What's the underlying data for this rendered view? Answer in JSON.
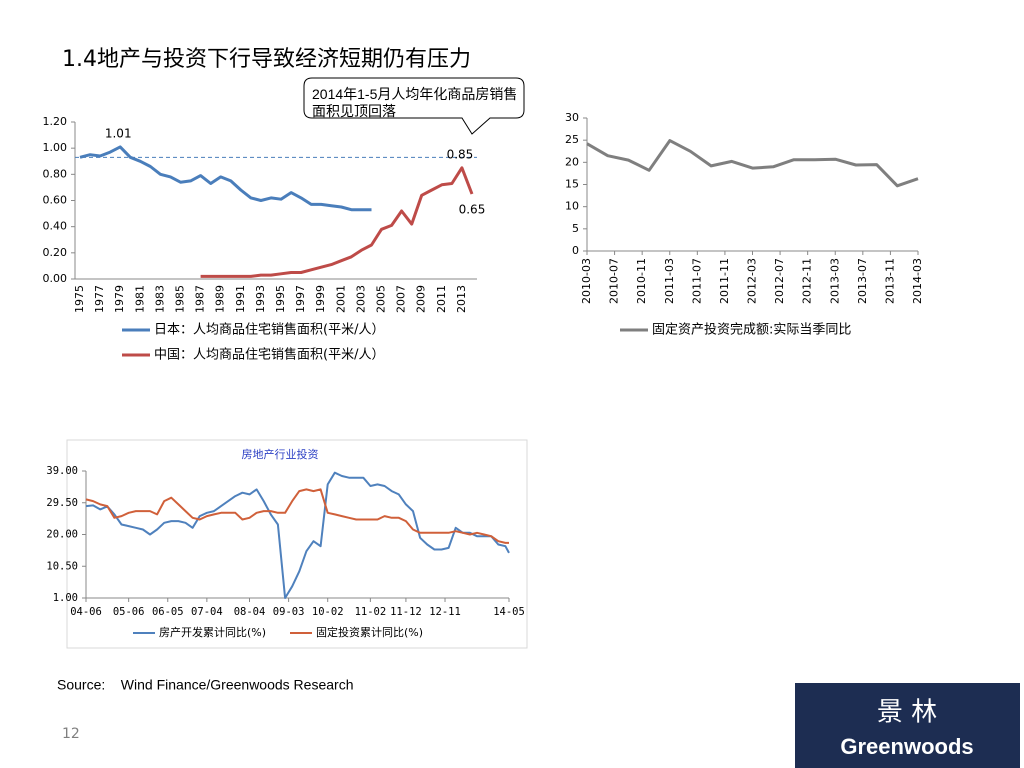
{
  "slide": {
    "title": "1.4地产与投资下行导致经济短期仍有压力",
    "source": "Source:    Wind Finance/Greenwoods Research",
    "page": "12",
    "logo_cn": "景 林",
    "logo_en": "Greenwoods"
  },
  "chart_data": [
    {
      "type": "line",
      "annotation": "2014年1-5月人均年化商品房销售面积见顶回落",
      "categories": [
        "1975",
        null,
        "1977",
        null,
        "1979",
        null,
        "1981",
        null,
        "1983",
        null,
        "1985",
        null,
        "1987",
        null,
        "1989",
        null,
        "1991",
        null,
        "1993",
        null,
        "1995",
        null,
        "1997",
        null,
        "1999",
        null,
        "2001",
        null,
        "2003",
        null,
        "2005",
        null,
        "2007",
        null,
        "2009",
        null,
        "2011",
        null,
        "2013",
        null
      ],
      "ylim": [
        0,
        1.2
      ],
      "yticks": [
        {
          "value": 0,
          "label": "0.00"
        },
        {
          "value": 0.2,
          "label": "0.20"
        },
        {
          "value": 0.4,
          "label": "0.40"
        },
        {
          "value": 0.6,
          "label": "0.60"
        },
        {
          "value": 0.8,
          "label": "0.80"
        },
        {
          "value": 1.0,
          "label": "1.00"
        },
        {
          "value": 1.2,
          "label": "1.20"
        }
      ],
      "reference_line": 0.93,
      "grid": false,
      "series": [
        {
          "name": "日本：人均商品住宅销售面积(平米/人）",
          "color": "#4a7ebb",
          "values": [
            0.93,
            0.95,
            0.94,
            0.97,
            1.01,
            0.93,
            0.9,
            0.86,
            0.8,
            0.78,
            0.74,
            0.75,
            0.79,
            0.73,
            0.78,
            0.75,
            0.68,
            0.62,
            0.6,
            0.62,
            0.61,
            0.66,
            0.62,
            0.57,
            0.57,
            0.56,
            0.55,
            0.53,
            0.53,
            0.53,
            null,
            null,
            null,
            null,
            null,
            null,
            null,
            null,
            null,
            null
          ],
          "value_labels": [
            null,
            null,
            null,
            null,
            "1.01",
            null,
            null,
            null,
            null,
            null,
            null,
            null,
            null,
            null,
            null,
            null,
            null,
            null,
            null,
            null,
            null,
            null,
            null,
            null,
            null,
            null,
            null,
            null,
            null,
            null,
            null,
            null,
            null,
            null,
            null,
            null,
            null,
            null,
            null,
            null
          ]
        },
        {
          "name": "中国：人均商品住宅销售面积(平米/人）",
          "color": "#be4b48",
          "values": [
            null,
            null,
            null,
            null,
            null,
            null,
            null,
            null,
            null,
            null,
            null,
            null,
            0.02,
            0.02,
            0.02,
            0.02,
            0.02,
            0.02,
            0.03,
            0.03,
            0.04,
            0.05,
            0.05,
            0.07,
            0.09,
            0.11,
            0.14,
            0.17,
            0.22,
            0.26,
            0.38,
            0.41,
            0.52,
            0.42,
            0.64,
            0.68,
            0.72,
            0.73,
            0.85,
            0.65
          ],
          "value_labels": [
            null,
            null,
            null,
            null,
            null,
            null,
            null,
            null,
            null,
            null,
            null,
            null,
            null,
            null,
            null,
            null,
            null,
            null,
            null,
            null,
            null,
            null,
            null,
            null,
            null,
            null,
            null,
            null,
            null,
            null,
            null,
            null,
            null,
            null,
            null,
            null,
            null,
            null,
            "0.85",
            "0.65"
          ]
        }
      ]
    },
    {
      "type": "line",
      "x": [
        "2010-03",
        "2010-06",
        "2010-09",
        "2010-12",
        "2011-03",
        "2011-06",
        "2011-09",
        "2011-12",
        "2012-03",
        "2012-06",
        "2012-09",
        "2012-12",
        "2013-03",
        "2013-06",
        "2013-09",
        "2013-12",
        "2014-03"
      ],
      "xlim": [
        "2010-03",
        "2014-03"
      ],
      "xticks": [
        "2010-03",
        "2010-07",
        "2010-11",
        "2011-03",
        "2011-07",
        "2011-11",
        "2012-03",
        "2012-07",
        "2012-11",
        "2013-03",
        "2013-07",
        "2013-11",
        "2014-03"
      ],
      "ylim": [
        0,
        30
      ],
      "yticks": [
        0,
        5,
        10,
        15,
        20,
        25,
        30
      ],
      "grid": false,
      "series": [
        {
          "name": "固定资产投资完成额:实际当季同比",
          "color": "#7f7f7f",
          "values": [
            24.2,
            21.5,
            20.5,
            18.2,
            24.9,
            22.5,
            19.2,
            20.2,
            18.7,
            19.0,
            20.6,
            20.6,
            20.7,
            19.4,
            19.5,
            14.7,
            16.3
          ]
        }
      ]
    },
    {
      "type": "line",
      "title": "房地产行业投资",
      "x": [
        "04-06",
        "04-08",
        "04-10",
        "04-12",
        "05-02",
        "05-04",
        "05-06",
        "05-08",
        "05-10",
        "05-12",
        "06-02",
        "06-04",
        "06-06",
        "06-08",
        "06-10",
        "06-12",
        "07-02",
        "07-04",
        "07-06",
        "07-08",
        "07-10",
        "07-12",
        "08-02",
        "08-04",
        "08-06",
        "08-08",
        "08-10",
        "08-12",
        "09-02",
        "09-04",
        "09-06",
        "09-08",
        "09-10",
        "09-12",
        "10-02",
        "10-04",
        "10-06",
        "10-08",
        "10-10",
        "10-12",
        "11-02",
        "11-04",
        "11-06",
        "11-08",
        "11-10",
        "11-12",
        "12-02",
        "12-04",
        "12-06",
        "12-08",
        "12-10",
        "12-12",
        "13-02",
        "13-04",
        "13-06",
        "13-08",
        "13-10",
        "13-12",
        "14-02",
        "14-04",
        "14-05"
      ],
      "xlim": [
        "04-06",
        "14-05"
      ],
      "xticks": [
        "04-06",
        "05-06",
        "06-05",
        "07-04",
        "08-04",
        "09-03",
        "10-02",
        "11-02",
        "11-12",
        "12-11",
        "14-05"
      ],
      "ylim": [
        1,
        39
      ],
      "yticks": [
        {
          "value": 1,
          "label": "1.00"
        },
        {
          "value": 10.5,
          "label": "10.50"
        },
        {
          "value": 20,
          "label": "20.00"
        },
        {
          "value": 29.5,
          "label": "29.50"
        },
        {
          "value": 39,
          "label": "39.00"
        }
      ],
      "grid": false,
      "series": [
        {
          "name": "房产开发累计同比(%)",
          "color": "#4f81bd",
          "values": [
            28.5,
            28.7,
            27.5,
            28.4,
            26,
            23,
            22.5,
            22,
            21.5,
            20,
            21.5,
            23.5,
            24,
            24,
            23.5,
            22,
            25.5,
            26.5,
            27,
            28.5,
            30,
            31.5,
            32.5,
            32,
            33.5,
            30,
            26,
            23,
            1,
            4.5,
            9,
            15,
            18,
            16.5,
            35,
            38.5,
            37.5,
            37,
            37,
            37,
            34.5,
            35,
            34.5,
            33,
            32,
            29,
            27,
            19,
            17,
            15.5,
            15.5,
            16,
            22,
            20.5,
            20.5,
            19.5,
            19.5,
            19.5,
            17,
            16.5,
            14.5
          ]
        },
        {
          "name": "固定投资累计同比(%)",
          "color": "#d0603a",
          "values": [
            30.5,
            30,
            29,
            28.5,
            25,
            25.5,
            26.5,
            27,
            27,
            27,
            26,
            30,
            31,
            29,
            27,
            25,
            24.5,
            25.5,
            26,
            26.5,
            26.5,
            26.5,
            24.5,
            25,
            26.5,
            27,
            27,
            26.5,
            26.5,
            30,
            33,
            33.5,
            33,
            33.5,
            26.5,
            26,
            25.5,
            25,
            24.5,
            24.5,
            24.5,
            24.5,
            25.5,
            25,
            25,
            24,
            21.5,
            20.5,
            20.5,
            20.5,
            20.5,
            20.5,
            21,
            20.5,
            20,
            20.5,
            20,
            19.5,
            18,
            17.5,
            17.5
          ]
        }
      ]
    }
  ]
}
